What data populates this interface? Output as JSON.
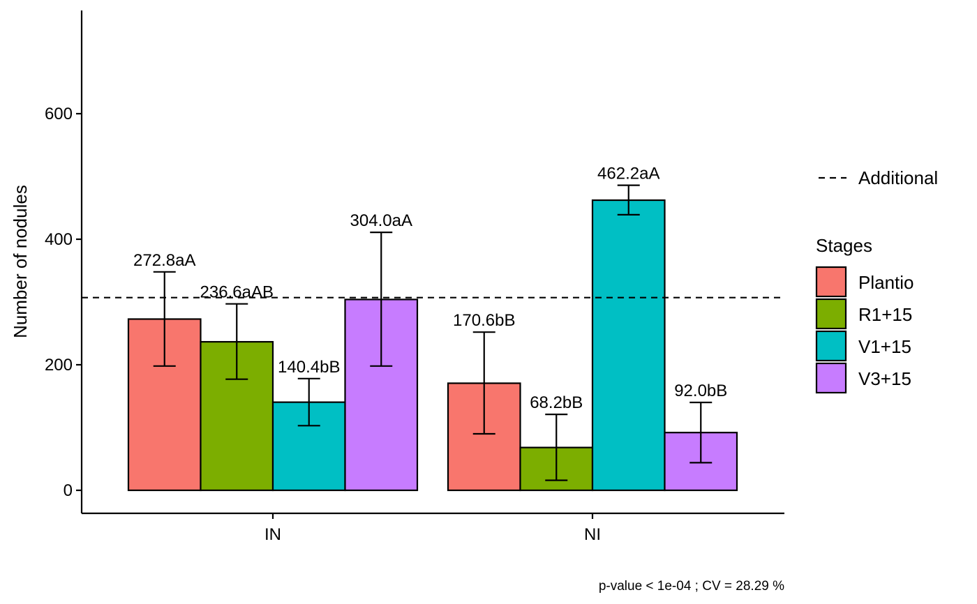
{
  "chart_data": {
    "type": "bar",
    "title": "",
    "xlabel": "",
    "ylabel": "Number of nodules",
    "categories": [
      "IN",
      "NI"
    ],
    "ylim": [
      -35,
      760
    ],
    "yticks": [
      0,
      200,
      400,
      600
    ],
    "grid": false,
    "series": [
      {
        "name": "Plantio",
        "color": "#F8766D",
        "values": [
          272.8,
          170.6
        ],
        "error_low": [
          198,
          90
        ],
        "error_high": [
          348,
          252
        ],
        "labels": [
          "272.8aA",
          "170.6bB"
        ]
      },
      {
        "name": "R1+15",
        "color": "#7CAE00",
        "values": [
          236.6,
          68.2
        ],
        "error_low": [
          177,
          16
        ],
        "error_high": [
          297,
          121
        ],
        "labels": [
          "236.6aAB",
          "68.2bB"
        ]
      },
      {
        "name": "V1+15",
        "color": "#00BFC4",
        "values": [
          140.4,
          462.2
        ],
        "error_low": [
          103,
          439
        ],
        "error_high": [
          178,
          486
        ],
        "labels": [
          "140.4bB",
          "462.2aA"
        ]
      },
      {
        "name": "V3+15",
        "color": "#C77CFF",
        "values": [
          304.0,
          92.0
        ],
        "error_low": [
          198,
          44
        ],
        "error_high": [
          411,
          140
        ],
        "labels": [
          "304.0aA",
          "92.0bB"
        ]
      }
    ],
    "reference_line": {
      "name": "Additional",
      "value": 307,
      "style": "dashed"
    },
    "legend": {
      "title": "Stages",
      "placement": "right",
      "line_entry": "Additional"
    },
    "caption": "p-value  < 1e-04 ; CV =  28.29 %"
  }
}
